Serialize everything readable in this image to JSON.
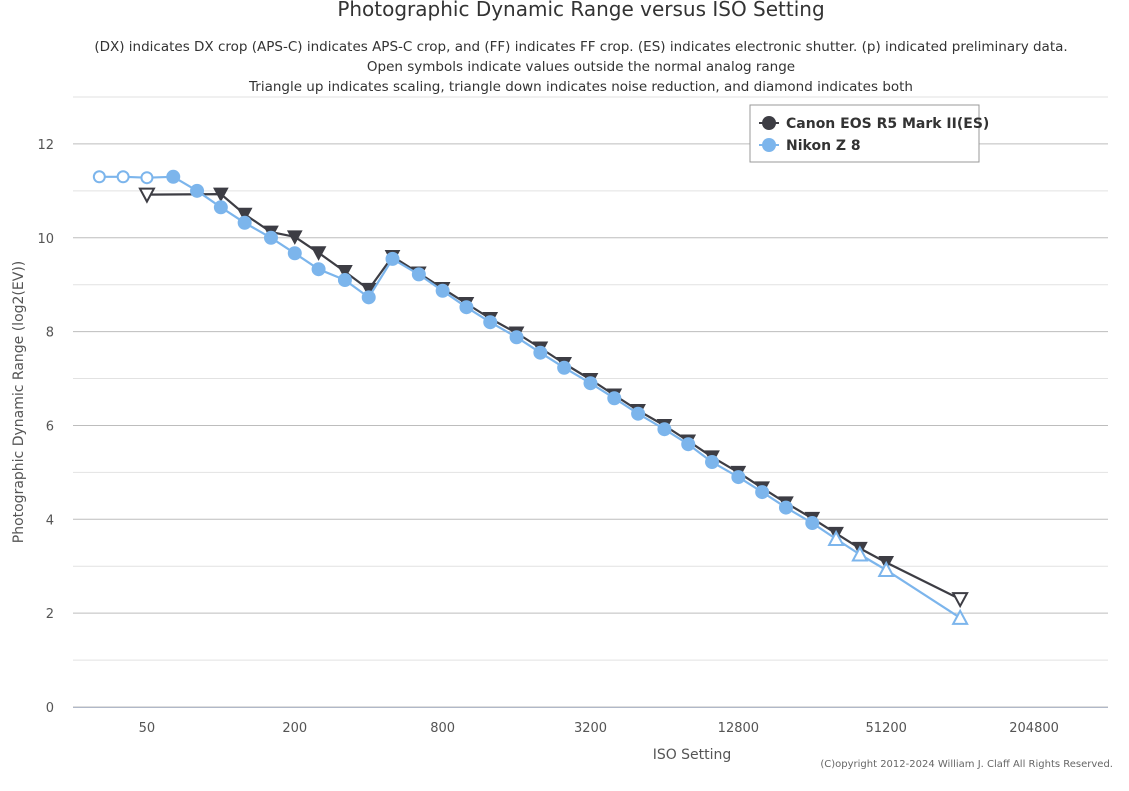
{
  "chart_data": {
    "type": "line",
    "title": "Photographic Dynamic Range versus ISO Setting",
    "subtitle_lines": [
      "(DX) indicates DX crop (APS-C) indicates APS-C crop, and (FF) indicates FF crop. (ES) indicates electronic shutter. (p) indicated preliminary data.",
      "Open symbols indicate values outside the normal analog range",
      "Triangle up indicates scaling, triangle down indicates noise reduction, and diamond indicates both"
    ],
    "xlabel": "ISO Setting",
    "ylabel": "Photographic Dynamic Range (log2(EV))",
    "x_scale": "log2",
    "xlim": [
      25,
      409600
    ],
    "ylim": [
      0,
      13
    ],
    "x_ticks": [
      50,
      200,
      800,
      3200,
      12800,
      51200,
      204800
    ],
    "y_ticks": [
      0,
      2,
      4,
      6,
      8,
      10,
      12
    ],
    "grid": true,
    "legend_position": "top-right",
    "credit": "(C)opyright 2012-2024 William J. Claff All Rights Reserved.",
    "series": [
      {
        "name": "Canon EOS R5 Mark II(ES)",
        "color": "#3d3d44",
        "points": [
          {
            "x": 50,
            "y": 10.92,
            "marker": "triangle-down-open"
          },
          {
            "x": 100,
            "y": 10.93,
            "marker": "triangle-down"
          },
          {
            "x": 125,
            "y": 10.5,
            "marker": "triangle-down"
          },
          {
            "x": 160,
            "y": 10.12,
            "marker": "triangle-down"
          },
          {
            "x": 200,
            "y": 10.02,
            "marker": "triangle-down"
          },
          {
            "x": 250,
            "y": 9.68,
            "marker": "triangle-down"
          },
          {
            "x": 320,
            "y": 9.28,
            "marker": "triangle-down"
          },
          {
            "x": 400,
            "y": 8.9,
            "marker": "triangle-down"
          },
          {
            "x": 500,
            "y": 9.6,
            "marker": "triangle-down"
          },
          {
            "x": 640,
            "y": 9.25,
            "marker": "triangle-down"
          },
          {
            "x": 800,
            "y": 8.92,
            "marker": "triangle-down"
          },
          {
            "x": 1000,
            "y": 8.6,
            "marker": "triangle-down"
          },
          {
            "x": 1250,
            "y": 8.28,
            "marker": "triangle-down"
          },
          {
            "x": 1600,
            "y": 7.97,
            "marker": "triangle-down"
          },
          {
            "x": 2000,
            "y": 7.65,
            "marker": "triangle-down"
          },
          {
            "x": 2500,
            "y": 7.32,
            "marker": "triangle-down"
          },
          {
            "x": 3200,
            "y": 6.98,
            "marker": "triangle-down"
          },
          {
            "x": 4000,
            "y": 6.65,
            "marker": "triangle-down"
          },
          {
            "x": 5000,
            "y": 6.32,
            "marker": "triangle-down"
          },
          {
            "x": 6400,
            "y": 6.0,
            "marker": "triangle-down"
          },
          {
            "x": 8000,
            "y": 5.67,
            "marker": "triangle-down"
          },
          {
            "x": 10000,
            "y": 5.33,
            "marker": "triangle-down"
          },
          {
            "x": 12800,
            "y": 5.0,
            "marker": "triangle-down"
          },
          {
            "x": 16000,
            "y": 4.67,
            "marker": "triangle-down"
          },
          {
            "x": 20000,
            "y": 4.35,
            "marker": "triangle-down"
          },
          {
            "x": 25600,
            "y": 4.02,
            "marker": "triangle-down"
          },
          {
            "x": 32000,
            "y": 3.7,
            "marker": "triangle-down"
          },
          {
            "x": 40000,
            "y": 3.38,
            "marker": "triangle-down"
          },
          {
            "x": 51200,
            "y": 3.08,
            "marker": "triangle-down"
          },
          {
            "x": 102400,
            "y": 2.3,
            "marker": "triangle-down-open"
          }
        ]
      },
      {
        "name": "Nikon Z 8",
        "color": "#7cb5ec",
        "points": [
          {
            "x": 32,
            "y": 11.3,
            "marker": "circle-open"
          },
          {
            "x": 40,
            "y": 11.3,
            "marker": "circle-open"
          },
          {
            "x": 50,
            "y": 11.28,
            "marker": "circle-open"
          },
          {
            "x": 64,
            "y": 11.3,
            "marker": "circle"
          },
          {
            "x": 80,
            "y": 11.0,
            "marker": "circle"
          },
          {
            "x": 100,
            "y": 10.65,
            "marker": "circle"
          },
          {
            "x": 125,
            "y": 10.32,
            "marker": "circle"
          },
          {
            "x": 160,
            "y": 10.0,
            "marker": "circle"
          },
          {
            "x": 200,
            "y": 9.67,
            "marker": "circle"
          },
          {
            "x": 250,
            "y": 9.33,
            "marker": "circle"
          },
          {
            "x": 320,
            "y": 9.1,
            "marker": "circle"
          },
          {
            "x": 400,
            "y": 8.73,
            "marker": "circle"
          },
          {
            "x": 500,
            "y": 9.55,
            "marker": "circle"
          },
          {
            "x": 640,
            "y": 9.22,
            "marker": "circle"
          },
          {
            "x": 800,
            "y": 8.87,
            "marker": "circle"
          },
          {
            "x": 1000,
            "y": 8.52,
            "marker": "circle"
          },
          {
            "x": 1250,
            "y": 8.2,
            "marker": "circle"
          },
          {
            "x": 1600,
            "y": 7.88,
            "marker": "circle"
          },
          {
            "x": 2000,
            "y": 7.55,
            "marker": "circle"
          },
          {
            "x": 2500,
            "y": 7.23,
            "marker": "circle"
          },
          {
            "x": 3200,
            "y": 6.9,
            "marker": "circle"
          },
          {
            "x": 4000,
            "y": 6.58,
            "marker": "circle"
          },
          {
            "x": 5000,
            "y": 6.25,
            "marker": "circle"
          },
          {
            "x": 6400,
            "y": 5.92,
            "marker": "circle"
          },
          {
            "x": 8000,
            "y": 5.6,
            "marker": "circle"
          },
          {
            "x": 10000,
            "y": 5.22,
            "marker": "circle"
          },
          {
            "x": 12800,
            "y": 4.9,
            "marker": "circle"
          },
          {
            "x": 16000,
            "y": 4.58,
            "marker": "circle"
          },
          {
            "x": 20000,
            "y": 4.25,
            "marker": "circle"
          },
          {
            "x": 25600,
            "y": 3.92,
            "marker": "circle"
          },
          {
            "x": 32000,
            "y": 3.58,
            "marker": "triangle-up-open"
          },
          {
            "x": 40000,
            "y": 3.25,
            "marker": "triangle-up-open"
          },
          {
            "x": 51200,
            "y": 2.92,
            "marker": "triangle-up-open"
          },
          {
            "x": 102400,
            "y": 1.9,
            "marker": "triangle-up-open"
          }
        ]
      }
    ]
  }
}
